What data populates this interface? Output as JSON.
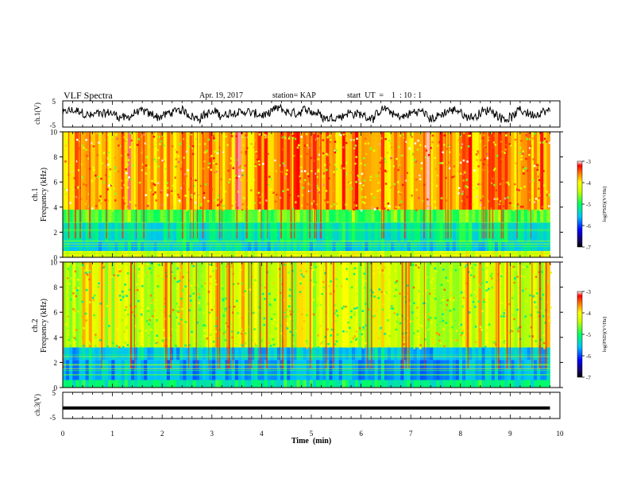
{
  "header": {
    "title": "VLF Spectra",
    "date": "Apr. 19, 2017",
    "station": "station= KAP",
    "start": "start  UT  =    1  : 10 : 1"
  },
  "chart_data": [
    {
      "type": "line",
      "panel": "ch1-waveform",
      "ylabel": "ch.1(V)",
      "ylim": [
        -5,
        5
      ],
      "yticks": [
        "5",
        "-5"
      ],
      "xlim": [
        0,
        10
      ],
      "series": [
        {
          "x_range": [
            0,
            9.8
          ],
          "description_values": "noisy waveform oscillating roughly between -3 and 3 V"
        }
      ],
      "color": "#000000"
    },
    {
      "type": "heatmap",
      "panel": "ch1-spectrogram",
      "ylabel": "ch.1\nFrequency  (kHz)",
      "ylim": [
        0,
        10
      ],
      "yticks": [
        "0",
        "2",
        "4",
        "6",
        "8",
        "10"
      ],
      "xlim": [
        0,
        10
      ],
      "data_xmax": 9.8,
      "colorbar": {
        "label": "log(PSD)(V²/Hz)",
        "range": [
          -7,
          -3
        ],
        "ticks": [
          "-3",
          "-4",
          "-5",
          "-6",
          "-7"
        ]
      },
      "bands": [
        {
          "from_khz": 0,
          "to_khz": 0.5,
          "level": -4.3
        },
        {
          "from_khz": 0.5,
          "to_khz": 1.2,
          "level": -5.5
        },
        {
          "from_khz": 1.2,
          "to_khz": 2.8,
          "level": -5.3
        },
        {
          "from_khz": 2.8,
          "to_khz": 3.8,
          "level": -4.8
        },
        {
          "from_khz": 3.8,
          "to_khz": 10,
          "level": -3.8
        }
      ]
    },
    {
      "type": "heatmap",
      "panel": "ch2-spectrogram",
      "ylabel": "ch.2\nFrequency  (kHz)",
      "ylim": [
        0,
        10
      ],
      "yticks": [
        "0",
        "2",
        "4",
        "6",
        "8",
        "10"
      ],
      "xlim": [
        0,
        10
      ],
      "data_xmax": 9.8,
      "colorbar": {
        "label": "log(PSD)(V²/Hz)",
        "range": [
          -7,
          -3
        ],
        "ticks": [
          "-3",
          "-4",
          "-5",
          "-6",
          "-7"
        ]
      },
      "bands": [
        {
          "from_khz": 0,
          "to_khz": 0.6,
          "level": -5.2
        },
        {
          "from_khz": 0.6,
          "to_khz": 2.2,
          "level": -5.7
        },
        {
          "from_khz": 2.2,
          "to_khz": 3.2,
          "level": -5.6
        },
        {
          "from_khz": 3.2,
          "to_khz": 10,
          "level": -4.4
        }
      ]
    },
    {
      "type": "line",
      "panel": "ch3-waveform",
      "ylabel": "ch.3(V)",
      "ylim": [
        -5,
        5
      ],
      "yticks": [
        "5",
        "-5"
      ],
      "xlim": [
        0,
        10
      ],
      "series": [
        {
          "x_range": [
            0,
            9.8
          ],
          "values": [
            -1,
            -1
          ]
        }
      ],
      "color": "#000000"
    }
  ],
  "xaxis": {
    "label": "Time  (min)",
    "ticks": [
      "0",
      "1",
      "2",
      "3",
      "4",
      "5",
      "6",
      "7",
      "8",
      "9",
      "10"
    ]
  }
}
